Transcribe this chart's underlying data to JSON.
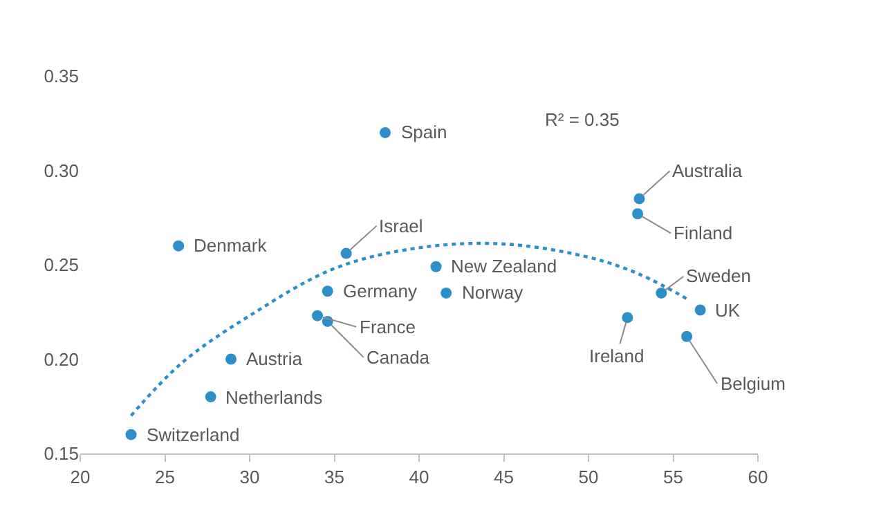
{
  "chart_data": {
    "type": "scatter",
    "xlim": [
      20,
      60
    ],
    "ylim": [
      0.15,
      0.35
    ],
    "xticks": [
      20,
      25,
      30,
      35,
      40,
      45,
      50,
      55,
      60
    ],
    "yticks": [
      0.15,
      {
        "value": 0.2,
        "label": "0.20"
      },
      0.25,
      {
        "value": 0.3,
        "label": "0.30"
      },
      0.35
    ],
    "marker": "circle",
    "series": [
      {
        "color": "#2e8fc8",
        "x": [
          23.0,
          25.8,
          27.7,
          28.9,
          38.0,
          35.7,
          34.6,
          34.0,
          34.6,
          41.0,
          41.6,
          53.0,
          52.9,
          54.3,
          56.6,
          52.3,
          55.8
        ],
        "values": [
          0.16,
          0.26,
          0.18,
          0.2,
          0.32,
          0.256,
          0.236,
          0.223,
          0.22,
          0.249,
          0.235,
          0.285,
          0.277,
          0.235,
          0.226,
          0.222,
          0.212
        ]
      },
      {
        "type": "line",
        "color": "#2e8fc8",
        "line_style": "dotted",
        "marker": "none",
        "x": [
          23,
          26,
          30,
          35,
          40,
          45,
          50,
          53,
          56
        ],
        "values": [
          0.17,
          0.198,
          0.223,
          0.248,
          0.259,
          0.261,
          0.254,
          0.245,
          0.231
        ]
      }
    ],
    "annotations": [
      {
        "text": "Switzerland",
        "x": 23.0,
        "y": 0.16
      },
      {
        "text": "Denmark",
        "x": 25.8,
        "y": 0.26
      },
      {
        "text": "Netherlands",
        "x": 27.7,
        "y": 0.18
      },
      {
        "text": "Austria",
        "x": 28.9,
        "y": 0.2
      },
      {
        "text": "Spain",
        "x": 38.0,
        "y": 0.32
      },
      {
        "text": "Israel",
        "x": 35.7,
        "y": 0.256
      },
      {
        "text": "Germany",
        "x": 34.6,
        "y": 0.236
      },
      {
        "text": "France",
        "x": 34.0,
        "y": 0.223
      },
      {
        "text": "Canada",
        "x": 34.6,
        "y": 0.22
      },
      {
        "text": "New Zealand",
        "x": 41.0,
        "y": 0.249
      },
      {
        "text": "Norway",
        "x": 41.6,
        "y": 0.235
      },
      {
        "text": "Australia",
        "x": 53.0,
        "y": 0.285
      },
      {
        "text": "Finland",
        "x": 52.9,
        "y": 0.277
      },
      {
        "text": "Sweden",
        "x": 54.3,
        "y": 0.235
      },
      {
        "text": "UK",
        "x": 56.6,
        "y": 0.226
      },
      {
        "text": "Ireland",
        "x": 52.3,
        "y": 0.222
      },
      {
        "text": "Belgium",
        "x": 55.8,
        "y": 0.212
      },
      "R² = 0.35"
    ]
  }
}
